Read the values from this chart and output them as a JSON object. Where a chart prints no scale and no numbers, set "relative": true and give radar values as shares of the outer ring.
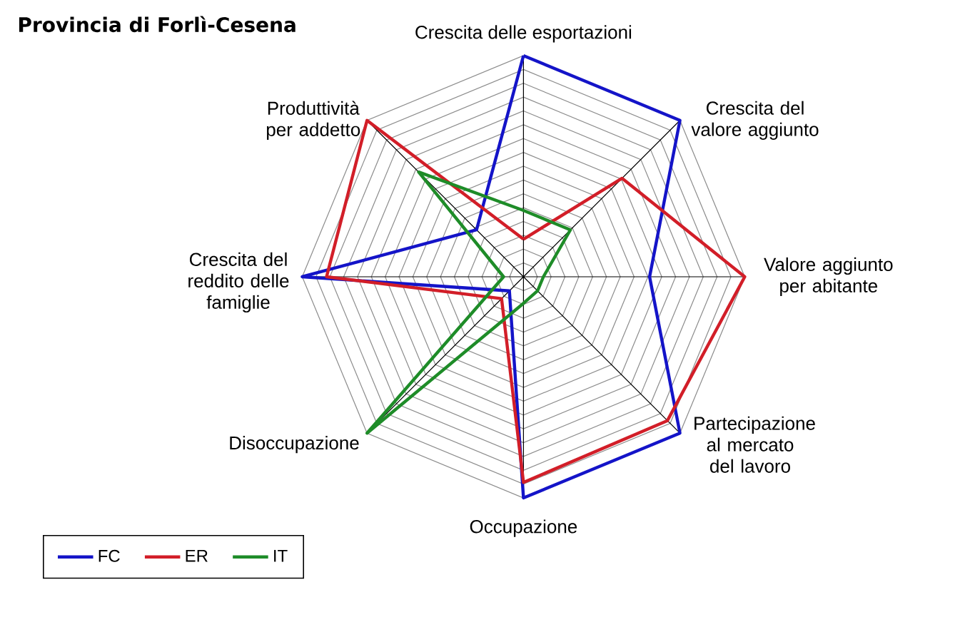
{
  "chart_data": {
    "type": "radar",
    "title": "Provincia di Forlì-Cesena",
    "categories": [
      "Crescita delle esportazioni",
      "Crescita del valore aggiunto",
      "Valore aggiunto per abitante",
      "Partecipazione al mercato del lavoro",
      "Occupazione",
      "Disoccupazione",
      "Crescita del reddito delle famiglie",
      "Produttività per addetto"
    ],
    "series": [
      {
        "name": "FC",
        "color": "#1414c8",
        "values": [
          1.0,
          1.0,
          0.57,
          1.0,
          1.0,
          0.09,
          1.0,
          0.3
        ]
      },
      {
        "name": "ER",
        "color": "#d21e28",
        "values": [
          0.17,
          0.63,
          1.0,
          0.92,
          0.93,
          0.14,
          0.89,
          1.0
        ]
      },
      {
        "name": "IT",
        "color": "#1e8c28",
        "values": [
          0.3,
          0.3,
          0.09,
          0.09,
          0.12,
          1.0,
          0.09,
          0.67
        ]
      }
    ],
    "relative": true,
    "grid": true,
    "legend": "bottom left"
  }
}
